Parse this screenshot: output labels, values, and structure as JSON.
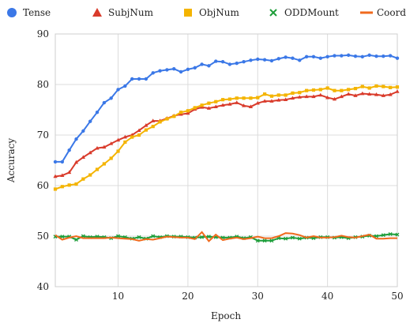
{
  "chart_data": {
    "type": "line",
    "xlabel": "Epoch",
    "ylabel": "Accuracy",
    "xlim": [
      1,
      50
    ],
    "ylim": [
      40,
      90
    ],
    "xticks": [
      10,
      20,
      30,
      40,
      50
    ],
    "yticks": [
      40,
      50,
      60,
      70,
      80,
      90
    ],
    "grid": true,
    "legend_position": "top",
    "x": [
      1,
      2,
      3,
      4,
      5,
      6,
      7,
      8,
      9,
      10,
      11,
      12,
      13,
      14,
      15,
      16,
      17,
      18,
      19,
      20,
      21,
      22,
      23,
      24,
      25,
      26,
      27,
      28,
      29,
      30,
      31,
      32,
      33,
      34,
      35,
      36,
      37,
      38,
      39,
      40,
      41,
      42,
      43,
      44,
      45,
      46,
      47,
      48,
      49,
      50
    ],
    "series": [
      {
        "name": "Tense",
        "color": "#3b78e7",
        "marker": "circle",
        "values": [
          64.7,
          64.7,
          67.0,
          69.2,
          70.8,
          72.7,
          74.5,
          76.4,
          77.3,
          79.0,
          79.7,
          81.1,
          81.1,
          81.1,
          82.3,
          82.7,
          82.9,
          83.1,
          82.5,
          83.0,
          83.3,
          84.0,
          83.7,
          84.6,
          84.5,
          84.0,
          84.2,
          84.5,
          84.8,
          85.0,
          84.9,
          84.7,
          85.1,
          85.4,
          85.2,
          84.8,
          85.5,
          85.5,
          85.2,
          85.5,
          85.7,
          85.7,
          85.8,
          85.6,
          85.5,
          85.8,
          85.6,
          85.6,
          85.7,
          85.2
        ]
      },
      {
        "name": "SubjNum",
        "color": "#d93b2b",
        "marker": "triangle",
        "values": [
          61.8,
          62.0,
          62.6,
          64.6,
          65.6,
          66.5,
          67.4,
          67.6,
          68.3,
          69.0,
          69.6,
          70.0,
          70.9,
          71.9,
          72.8,
          72.8,
          73.3,
          73.8,
          74.1,
          74.3,
          75.1,
          75.5,
          75.3,
          75.6,
          75.9,
          76.1,
          76.4,
          75.8,
          75.6,
          76.3,
          76.7,
          76.7,
          76.9,
          77.0,
          77.3,
          77.5,
          77.6,
          77.6,
          77.9,
          77.4,
          77.1,
          77.6,
          78.1,
          77.8,
          78.2,
          78.1,
          78.0,
          77.8,
          78.0,
          78.6
        ]
      },
      {
        "name": "ObjNum",
        "color": "#f4b400",
        "marker": "square",
        "values": [
          59.3,
          59.8,
          60.1,
          60.3,
          61.3,
          62.1,
          63.2,
          64.3,
          65.4,
          66.8,
          68.6,
          69.6,
          70.0,
          71.0,
          71.7,
          72.6,
          73.2,
          73.7,
          74.5,
          74.8,
          75.4,
          75.9,
          76.3,
          76.6,
          77.0,
          77.1,
          77.3,
          77.3,
          77.3,
          77.4,
          78.1,
          77.7,
          77.9,
          77.9,
          78.3,
          78.4,
          78.8,
          78.9,
          79.0,
          79.3,
          78.8,
          78.8,
          79.0,
          79.2,
          79.6,
          79.3,
          79.7,
          79.6,
          79.4,
          79.5
        ]
      },
      {
        "name": "ODDMount",
        "color": "#1e9e3a",
        "marker": "cross",
        "values": [
          49.9,
          49.9,
          49.9,
          49.3,
          50.0,
          49.8,
          49.9,
          49.8,
          49.6,
          50.0,
          49.8,
          49.5,
          49.8,
          49.5,
          50.0,
          49.8,
          50.0,
          49.9,
          49.9,
          49.8,
          49.7,
          49.8,
          49.9,
          49.8,
          49.7,
          49.7,
          49.9,
          49.6,
          49.8,
          49.1,
          49.1,
          49.1,
          49.6,
          49.5,
          49.7,
          49.5,
          49.7,
          49.6,
          49.8,
          49.8,
          49.7,
          49.8,
          49.6,
          49.8,
          49.9,
          50.1,
          50.0,
          50.2,
          50.4,
          50.3
        ]
      },
      {
        "name": "CoordInv",
        "color": "#f06a1d",
        "marker": "none",
        "values": [
          50.2,
          49.3,
          49.7,
          50.0,
          49.6,
          49.6,
          49.6,
          49.6,
          49.7,
          49.6,
          49.5,
          49.4,
          49.1,
          49.4,
          49.3,
          49.6,
          49.9,
          49.8,
          49.7,
          49.7,
          49.4,
          50.8,
          49.0,
          50.3,
          49.2,
          49.5,
          49.7,
          49.4,
          49.6,
          49.9,
          49.6,
          49.6,
          50.0,
          50.6,
          50.5,
          50.2,
          49.7,
          50.0,
          49.7,
          49.7,
          49.8,
          50.1,
          49.8,
          49.7,
          50.0,
          50.3,
          49.5,
          49.5,
          49.6,
          49.6
        ]
      }
    ]
  }
}
